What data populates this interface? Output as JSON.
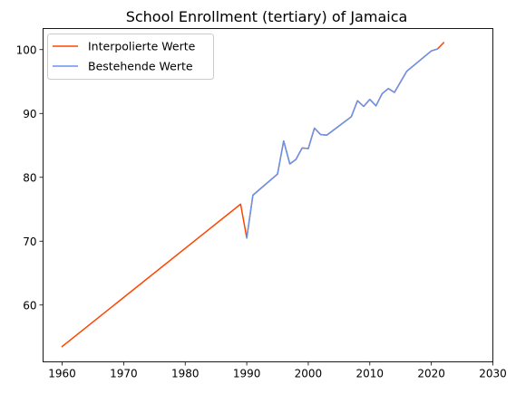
{
  "chart_data": {
    "type": "line",
    "title": "School Enrollment (tertiary) of Jamaica",
    "xlabel": "",
    "ylabel": "",
    "xlim": [
      1956.9,
      2030
    ],
    "ylim": [
      51.1,
      103.3
    ],
    "xticks": [
      1960,
      1970,
      1980,
      1990,
      2000,
      2010,
      2020,
      2030
    ],
    "yticks": [
      60,
      70,
      80,
      90,
      100
    ],
    "grid": false,
    "legend_position": "top-left",
    "series": [
      {
        "name": "Interpolierte Werte",
        "color": "#ff4500",
        "x": [
          1960,
          1989,
          1990,
          1991,
          1995,
          1996,
          1997,
          1998,
          1999,
          2000,
          2001,
          2002,
          2003,
          2007,
          2008,
          2009,
          2010,
          2011,
          2012,
          2013,
          2014,
          2016,
          2020,
          2021,
          2022
        ],
        "y": [
          53.5,
          75.8,
          70.5,
          77.2,
          80.5,
          85.7,
          82.1,
          82.8,
          84.6,
          84.5,
          87.7,
          86.7,
          86.6,
          89.5,
          92.0,
          91.1,
          92.2,
          91.2,
          93.1,
          93.9,
          93.3,
          96.6,
          99.8,
          100.1,
          101.1
        ]
      },
      {
        "name": "Bestehende Werte",
        "color": "#6495ed",
        "x": [
          1990,
          1991,
          1995,
          1996,
          1997,
          1998,
          1999,
          2000,
          2001,
          2002,
          2003,
          2007,
          2008,
          2009,
          2010,
          2011,
          2012,
          2013,
          2014,
          2016,
          2020,
          2021
        ],
        "y": [
          70.5,
          77.2,
          80.5,
          85.7,
          82.1,
          82.8,
          84.6,
          84.5,
          87.7,
          86.7,
          86.6,
          89.5,
          92.0,
          91.1,
          92.2,
          91.2,
          93.1,
          93.9,
          93.3,
          96.6,
          99.8,
          100.1
        ]
      }
    ]
  }
}
